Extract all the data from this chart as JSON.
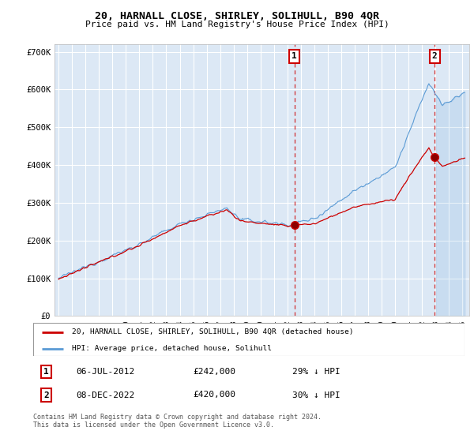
{
  "title": "20, HARNALL CLOSE, SHIRLEY, SOLIHULL, B90 4QR",
  "subtitle": "Price paid vs. HM Land Registry's House Price Index (HPI)",
  "background_color": "#ffffff",
  "plot_bg_color": "#dce8f5",
  "grid_color": "#ffffff",
  "ylim": [
    0,
    720000
  ],
  "yticks": [
    0,
    100000,
    200000,
    300000,
    400000,
    500000,
    600000,
    700000
  ],
  "ytick_labels": [
    "£0",
    "£100K",
    "£200K",
    "£300K",
    "£400K",
    "£500K",
    "£600K",
    "£700K"
  ],
  "sale1_date_x": 2012.508,
  "sale1_price": 242000,
  "sale1_label": "06-JUL-2012",
  "sale1_price_label": "£242,000",
  "sale1_hpi_label": "29% ↓ HPI",
  "sale2_date_x": 2022.931,
  "sale2_price": 420000,
  "sale2_label": "08-DEC-2022",
  "sale2_price_label": "£420,000",
  "sale2_hpi_label": "30% ↓ HPI",
  "legend_line1": "20, HARNALL CLOSE, SHIRLEY, SOLIHULL, B90 4QR (detached house)",
  "legend_line2": "HPI: Average price, detached house, Solihull",
  "footer": "Contains HM Land Registry data © Crown copyright and database right 2024.\nThis data is licensed under the Open Government Licence v3.0.",
  "hpi_color": "#5b9bd5",
  "sale_color": "#cc0000",
  "xmin": 1995.0,
  "xmax": 2025.5
}
